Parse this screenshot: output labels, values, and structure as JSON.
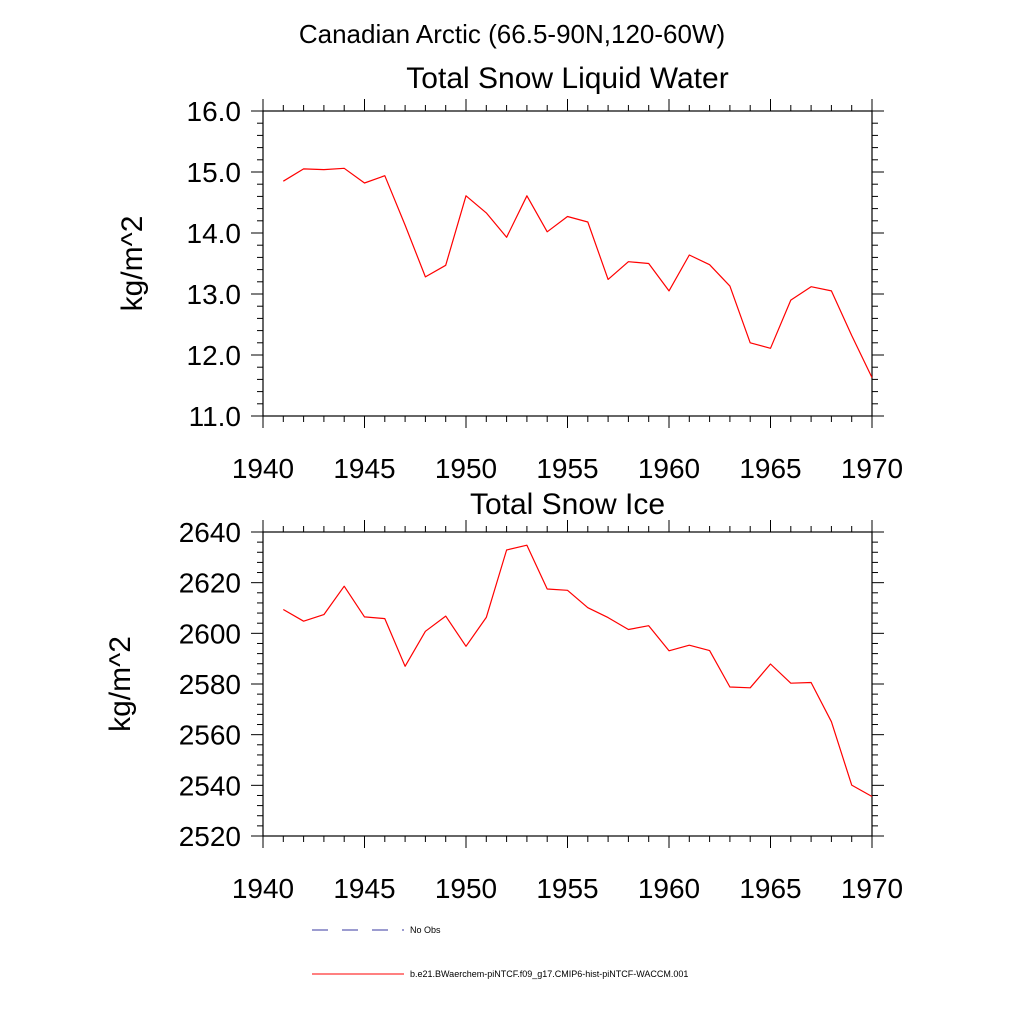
{
  "figure": {
    "suptitle": "Canadian Arctic (66.5-90N,120-60W)"
  },
  "legend": {
    "placement": "bottom",
    "entries": [
      {
        "label": "No Obs",
        "color": "#3a3aa0",
        "style": "dashed"
      },
      {
        "label": "b.e21.BWaerchem-piNTCF.f09_g17.CMIP6-hist-piNTCF-WACCM.001",
        "color": "#ff0000",
        "style": "solid"
      }
    ]
  },
  "chart_data": [
    {
      "type": "line",
      "title": "Total Snow Liquid Water",
      "xlabel": "",
      "ylabel": "kg/m^2",
      "xlim": [
        1940,
        1970
      ],
      "ylim": [
        11.0,
        16.0
      ],
      "xticks": [
        1940,
        1945,
        1950,
        1955,
        1960,
        1965,
        1970
      ],
      "yticks": [
        11.0,
        12.0,
        13.0,
        14.0,
        15.0,
        16.0
      ],
      "ytick_labels": [
        "11.0",
        "12.0",
        "13.0",
        "14.0",
        "15.0",
        "16.0"
      ],
      "grid": false,
      "series": [
        {
          "name": "b.e21.BWaerchem-piNTCF.f09_g17.CMIP6-hist-piNTCF-WACCM.001",
          "color": "#ff0000",
          "x": [
            1941,
            1942,
            1943,
            1944,
            1945,
            1946,
            1947,
            1948,
            1949,
            1950,
            1951,
            1952,
            1953,
            1954,
            1955,
            1956,
            1957,
            1958,
            1959,
            1960,
            1961,
            1962,
            1963,
            1964,
            1965,
            1966,
            1967,
            1968,
            1969,
            1970
          ],
          "y": [
            14.85,
            15.05,
            15.04,
            15.06,
            14.82,
            14.94,
            14.13,
            13.28,
            13.47,
            14.61,
            14.33,
            13.93,
            14.61,
            14.02,
            14.27,
            14.18,
            13.24,
            13.53,
            13.5,
            13.05,
            13.64,
            13.48,
            13.13,
            12.2,
            12.11,
            12.9,
            13.12,
            13.05,
            12.32,
            11.63
          ]
        }
      ]
    },
    {
      "type": "line",
      "title": "Total Snow Ice",
      "xlabel": "",
      "ylabel": "kg/m^2",
      "xlim": [
        1940,
        1970
      ],
      "ylim": [
        2520,
        2640
      ],
      "xticks": [
        1940,
        1945,
        1950,
        1955,
        1960,
        1965,
        1970
      ],
      "yticks": [
        2520,
        2540,
        2560,
        2580,
        2600,
        2620,
        2640
      ],
      "ytick_labels": [
        "2520",
        "2540",
        "2560",
        "2580",
        "2600",
        "2620",
        "2640"
      ],
      "grid": false,
      "series": [
        {
          "name": "b.e21.BWaerchem-piNTCF.f09_g17.CMIP6-hist-piNTCF-WACCM.001",
          "color": "#ff0000",
          "x": [
            1941,
            1942,
            1943,
            1944,
            1945,
            1946,
            1947,
            1948,
            1949,
            1950,
            1951,
            1952,
            1953,
            1954,
            1955,
            1956,
            1957,
            1958,
            1959,
            1960,
            1961,
            1962,
            1963,
            1964,
            1965,
            1966,
            1967,
            1968,
            1969,
            1970
          ],
          "y": [
            2609.4,
            2604.8,
            2607.4,
            2618.6,
            2606.5,
            2605.8,
            2587.0,
            2600.8,
            2606.8,
            2594.9,
            2606.3,
            2632.9,
            2634.8,
            2617.5,
            2617.0,
            2610.1,
            2606.2,
            2601.5,
            2603.0,
            2593.1,
            2595.3,
            2593.2,
            2578.8,
            2578.5,
            2587.9,
            2580.3,
            2580.6,
            2565.1,
            2540.1,
            2535.6
          ]
        }
      ]
    }
  ]
}
